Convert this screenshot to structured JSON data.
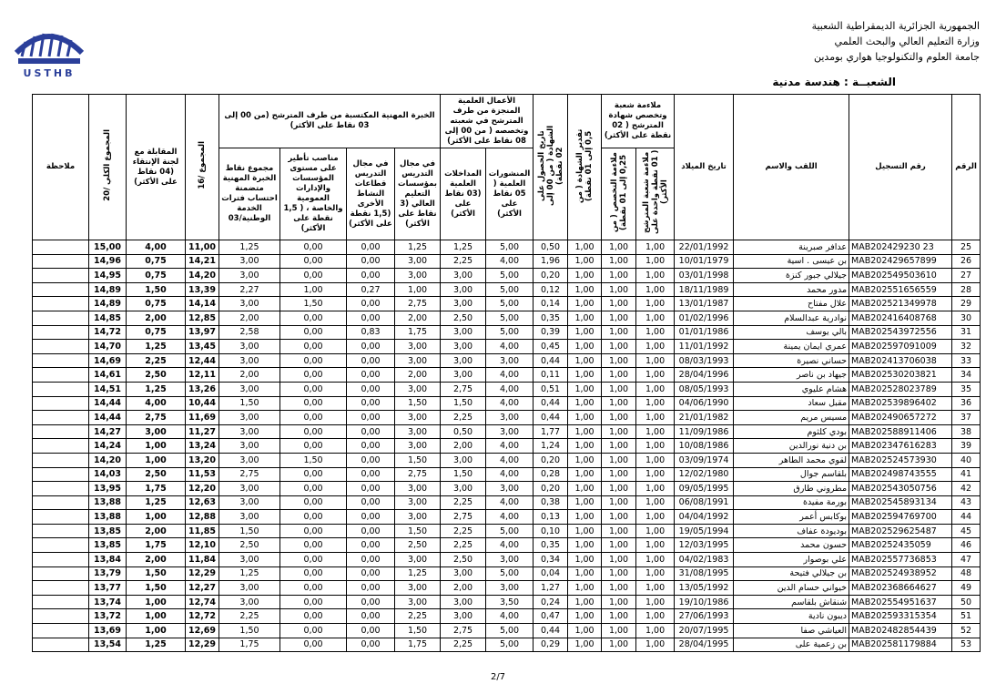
{
  "header": {
    "lines": [
      "الجمهورية الجزائرية الديمقراطية الشعبية",
      "وزارة التعليم العالي والبحث العلمي",
      "جامعة العلوم والتكنولوجيا هواري بومدين"
    ],
    "specialty": "الشعبــة : هندسة مدنية",
    "logo": "USTHB"
  },
  "table": {
    "groups": [
      "ملاءمة شعبة وتخصص شهادة المترشح ( 02 نقطة على الأكثر)",
      "الأعمال العلمية المنجزة من طرف المترشح في شعبته وتخصصه ( من 00 إلى 08 نقاط على الأكثر)",
      "الخبرة المهنية المكتسبة من طرف المترشح (من 00 إلى 03 نقاط على الأكثر)"
    ],
    "columns": [
      "الرقم",
      "رقم التسجيل",
      "اللقب والاسم",
      "تاريخ الميلاد",
      "ملاءمة شعبة المترشح ( 01 نقطة واحدة على الأكثر)",
      "ملاءمة التخصص ( من 0,25 إلى 01 نقطة)",
      "تقدير الشهادة ( من 0,5 إلى 01 نقطة)",
      "تاريخ الحصول على الشهادة ( من 00 إلى 02 نقطة)",
      "المنشورات العلمية ( 05 نقاط على الأكثر)",
      "المداخلات العلمية (03 نقاط على الأكثر)",
      "في مجال التدريس بمؤسسات التعليم العالي (3 نقاط على الأكثر)",
      "في مجال التدريس قطاعات النشاط الأخرى (1,5 نقطة على الأكثر)",
      "مناصب تأطير على مستوى المؤسسات والإدارات العمومية والخاصة ، ( 1,5 نقطة على الأكثر)",
      "مجموع نقاط الخبرة المهنية متضمنة احتساب فترات الخدمة الوطنية/03",
      "المجموع /16",
      "المقابلة مع لجنة الإنتقاء (04 نقاط على الأكثر)",
      "المجموع الكلي /20",
      "ملاحظة"
    ],
    "rows": [
      [
        "25",
        "MAB202429230 23",
        "عدافر صبرينة",
        "22/01/1992",
        "1,00",
        "1,00",
        "1,00",
        "0,50",
        "5,00",
        "1,25",
        "1,25",
        "0,00",
        "0,00",
        "1,25",
        "11,00",
        "4,00",
        "15,00"
      ],
      [
        "26",
        "MAB202429657899",
        "بن عيسى . اسية",
        "10/01/1979",
        "1,00",
        "1,00",
        "1,00",
        "1,96",
        "4,00",
        "2,25",
        "3,00",
        "0,00",
        "0,00",
        "3,00",
        "14,21",
        "0,75",
        "14,96"
      ],
      [
        "27",
        "MAB202549503610",
        "جيلالي جبور كنزة",
        "03/01/1998",
        "1,00",
        "1,00",
        "1,00",
        "0,20",
        "5,00",
        "3,00",
        "3,00",
        "0,00",
        "0,00",
        "3,00",
        "14,20",
        "0,75",
        "14,95"
      ],
      [
        "28",
        "MAB202551656559",
        "مدور محمد",
        "18/11/1989",
        "1,00",
        "1,00",
        "1,00",
        "0,12",
        "5,00",
        "3,00",
        "1,00",
        "0,27",
        "1,00",
        "2,27",
        "13,39",
        "1,50",
        "14,89"
      ],
      [
        "29",
        "MAB202521349978",
        "علال مفتاح",
        "13/01/1987",
        "1,00",
        "1,00",
        "1,00",
        "0,14",
        "5,00",
        "3,00",
        "2,75",
        "0,00",
        "1,50",
        "3,00",
        "14,14",
        "0,75",
        "14,89"
      ],
      [
        "30",
        "MAB202416408768",
        "نوادرية عبدالسلام",
        "01/02/1996",
        "1,00",
        "1,00",
        "1,00",
        "0,35",
        "5,00",
        "2,50",
        "2,00",
        "0,00",
        "0,00",
        "2,00",
        "12,85",
        "2,00",
        "14,85"
      ],
      [
        "31",
        "MAB202543972556",
        "بالي يوسف",
        "01/01/1986",
        "1,00",
        "1,00",
        "1,00",
        "0,39",
        "5,00",
        "3,00",
        "1,75",
        "0,83",
        "0,00",
        "2,58",
        "13,97",
        "0,75",
        "14,72"
      ],
      [
        "32",
        "MAB202597091009",
        "عمري ايمان يمينة",
        "11/01/1992",
        "1,00",
        "1,00",
        "1,00",
        "0,45",
        "4,00",
        "3,00",
        "3,00",
        "0,00",
        "0,00",
        "3,00",
        "13,45",
        "1,25",
        "14,70"
      ],
      [
        "33",
        "MAB202413706038",
        "حساني نصيرة",
        "08/03/1993",
        "1,00",
        "1,00",
        "1,00",
        "0,44",
        "3,00",
        "3,00",
        "3,00",
        "0,00",
        "0,00",
        "3,00",
        "12,44",
        "2,25",
        "14,69"
      ],
      [
        "34",
        "MAB202530203821",
        "جيهاد بن ناصر",
        "28/04/1996",
        "1,00",
        "1,00",
        "1,00",
        "0,11",
        "4,00",
        "3,00",
        "2,00",
        "0,00",
        "0,00",
        "2,00",
        "12,11",
        "2,50",
        "14,61"
      ],
      [
        "35",
        "MAB202528023789",
        "هشام عليوي",
        "08/05/1993",
        "1,00",
        "1,00",
        "1,00",
        "0,51",
        "4,00",
        "2,75",
        "3,00",
        "0,00",
        "0,00",
        "3,00",
        "13,26",
        "1,25",
        "14,51"
      ],
      [
        "36",
        "MAB202539896402",
        "مقبل سعاد",
        "04/06/1990",
        "1,00",
        "1,00",
        "1,00",
        "0,44",
        "4,00",
        "1,50",
        "1,50",
        "0,00",
        "0,00",
        "1,50",
        "10,44",
        "4,00",
        "14,44"
      ],
      [
        "37",
        "MAB202490657272",
        "مسيس مريم",
        "21/01/1982",
        "1,00",
        "1,00",
        "1,00",
        "0,44",
        "3,00",
        "2,25",
        "3,00",
        "0,00",
        "0,00",
        "3,00",
        "11,69",
        "2,75",
        "14,44"
      ],
      [
        "38",
        "MAB202588911406",
        "بودي كلثوم",
        "11/09/1986",
        "1,00",
        "1,00",
        "1,00",
        "1,77",
        "3,00",
        "0,50",
        "3,00",
        "0,00",
        "0,00",
        "3,00",
        "11,27",
        "3,00",
        "14,27"
      ],
      [
        "39",
        "MAB202347616283",
        "بن دنية نورالدين",
        "10/08/1986",
        "1,00",
        "1,00",
        "1,00",
        "1,24",
        "4,00",
        "2,00",
        "3,00",
        "0,00",
        "0,00",
        "3,00",
        "13,24",
        "1,00",
        "14,24"
      ],
      [
        "40",
        "MAB202524573930",
        "لقوي محمد الطاهر",
        "03/09/1974",
        "1,00",
        "1,00",
        "1,00",
        "0,20",
        "4,00",
        "3,00",
        "1,50",
        "0,00",
        "1,50",
        "3,00",
        "13,20",
        "1,00",
        "14,20"
      ],
      [
        "41",
        "MAB202498743555",
        "بلقاسم جوال",
        "12/02/1980",
        "1,00",
        "1,00",
        "1,00",
        "0,28",
        "4,00",
        "1,50",
        "2,75",
        "0,00",
        "0,00",
        "2,75",
        "11,53",
        "2,50",
        "14,03"
      ],
      [
        "42",
        "MAB202543050756",
        "مطروني طارق",
        "09/05/1995",
        "1,00",
        "1,00",
        "1,00",
        "0,20",
        "3,00",
        "3,00",
        "3,00",
        "0,00",
        "0,00",
        "3,00",
        "12,20",
        "1,75",
        "13,95"
      ],
      [
        "43",
        "MAB202545893134",
        "بورمة مفيدة",
        "06/08/1991",
        "1,00",
        "1,00",
        "1,00",
        "0,38",
        "4,00",
        "2,25",
        "3,00",
        "0,00",
        "0,00",
        "3,00",
        "12,63",
        "1,25",
        "13,88"
      ],
      [
        "44",
        "MAB202594769700",
        "بوكابس أعمر",
        "04/04/1992",
        "1,00",
        "1,00",
        "1,00",
        "0,13",
        "4,00",
        "2,75",
        "3,00",
        "0,00",
        "0,00",
        "3,00",
        "12,88",
        "1,00",
        "13,88"
      ],
      [
        "45",
        "MAB202529625487",
        "بوديودة عفاف",
        "19/05/1994",
        "1,00",
        "1,00",
        "1,00",
        "0,10",
        "5,00",
        "2,25",
        "1,50",
        "0,00",
        "0,00",
        "1,50",
        "11,85",
        "2,00",
        "13,85"
      ],
      [
        "46",
        "MAB20252435059",
        "حسون محمد",
        "12/03/1995",
        "1,00",
        "1,00",
        "1,00",
        "0,35",
        "4,00",
        "2,25",
        "2,50",
        "0,00",
        "0,00",
        "2,50",
        "12,10",
        "1,75",
        "13,85"
      ],
      [
        "47",
        "MAB202557736853",
        "علي بوصوار",
        "04/02/1983",
        "1,00",
        "1,00",
        "1,00",
        "0,34",
        "3,00",
        "2,50",
        "3,00",
        "0,00",
        "0,00",
        "3,00",
        "11,84",
        "2,00",
        "13,84"
      ],
      [
        "48",
        "MAB202524938952",
        "بن جيلالي فتيحة",
        "31/08/1995",
        "1,00",
        "1,00",
        "1,00",
        "0,04",
        "5,00",
        "3,00",
        "1,25",
        "0,00",
        "0,00",
        "1,25",
        "12,29",
        "1,50",
        "13,79"
      ],
      [
        "49",
        "MAB202368664627",
        "خيواني حسام الدين",
        "13/05/1992",
        "1,00",
        "1,00",
        "1,00",
        "1,27",
        "3,00",
        "2,00",
        "3,00",
        "0,00",
        "0,00",
        "3,00",
        "12,27",
        "1,50",
        "13,77"
      ],
      [
        "50",
        "MAB202554951637",
        "شنقاش بلقاسم",
        "19/10/1986",
        "1,00",
        "1,00",
        "1,00",
        "0,24",
        "3,50",
        "3,00",
        "3,00",
        "0,00",
        "0,00",
        "3,00",
        "12,74",
        "1,00",
        "13,74"
      ],
      [
        "51",
        "MAB202593315354",
        "ديبون نادية",
        "27/06/1993",
        "1,00",
        "1,00",
        "1,00",
        "0,47",
        "4,00",
        "3,00",
        "2,25",
        "0,00",
        "0,00",
        "2,25",
        "12,72",
        "1,00",
        "13,72"
      ],
      [
        "52",
        "MAB202482854439",
        "العياشي صفا",
        "20/07/1995",
        "1,00",
        "1,00",
        "1,00",
        "0,44",
        "5,00",
        "2,75",
        "1,50",
        "0,00",
        "0,00",
        "1,50",
        "12,69",
        "1,00",
        "13,69"
      ],
      [
        "53",
        "MAB202581179884",
        "بن زعمية على",
        "28/04/1995",
        "1,00",
        "1,00",
        "1,00",
        "0,29",
        "5,00",
        "2,25",
        "1,75",
        "0,00",
        "0,00",
        "1,75",
        "12,29",
        "1,25",
        "13,54"
      ]
    ]
  },
  "footer": {
    "page": "2/7"
  }
}
